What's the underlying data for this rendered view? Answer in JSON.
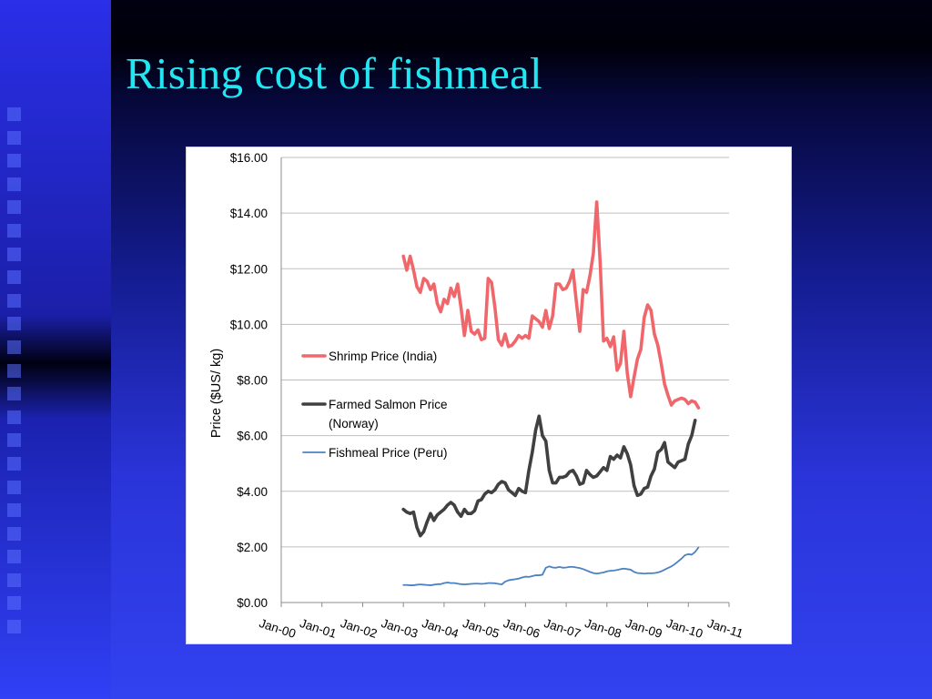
{
  "slide": {
    "title": "Rising cost of fishmeal"
  },
  "colors": {
    "shrimp": "#f0676b",
    "salmon": "#404040",
    "fishmeal": "#4b82c3",
    "title": "#22e6f2"
  },
  "chart_data": {
    "type": "line",
    "title": "",
    "xlabel": "",
    "ylabel": "Price ($US/ kg)",
    "x_ticks": [
      "Jan-00",
      "Jan-01",
      "Jan-02",
      "Jan-03",
      "Jan-04",
      "Jan-05",
      "Jan-06",
      "Jan-07",
      "Jan-08",
      "Jan-09",
      "Jan-10",
      "Jan-11"
    ],
    "y_ticks": [
      "$0.00",
      "$2.00",
      "$4.00",
      "$6.00",
      "$8.00",
      "$10.00",
      "$12.00",
      "$14.00",
      "$16.00"
    ],
    "xlim": [
      "Jan-00",
      "Jan-11"
    ],
    "ylim": [
      0,
      16
    ],
    "grid": "horizontal",
    "legend": "left",
    "series": [
      {
        "name": "Shrimp Price (India)",
        "points": [
          [
            "Jan-03",
            12.45
          ],
          [
            "Feb-03",
            11.95
          ],
          [
            "Mar-03",
            12.45
          ],
          [
            "Apr-03",
            11.95
          ],
          [
            "May-03",
            11.35
          ],
          [
            "Jun-03",
            11.15
          ],
          [
            "Jul-03",
            11.65
          ],
          [
            "Aug-03",
            11.55
          ],
          [
            "Sep-03",
            11.25
          ],
          [
            "Oct-03",
            11.45
          ],
          [
            "Nov-03",
            10.75
          ],
          [
            "Dec-03",
            10.45
          ],
          [
            "Jan-04",
            10.9
          ],
          [
            "Feb-04",
            10.75
          ],
          [
            "Mar-04",
            11.3
          ],
          [
            "Apr-04",
            11.0
          ],
          [
            "May-04",
            11.45
          ],
          [
            "Jun-04",
            10.6
          ],
          [
            "Jul-04",
            9.6
          ],
          [
            "Aug-04",
            10.5
          ],
          [
            "Sep-04",
            9.75
          ],
          [
            "Oct-04",
            9.65
          ],
          [
            "Nov-04",
            9.8
          ],
          [
            "Dec-04",
            9.45
          ],
          [
            "Jan-05",
            9.5
          ],
          [
            "Feb-05",
            11.65
          ],
          [
            "Mar-05",
            11.5
          ],
          [
            "Apr-05",
            10.6
          ],
          [
            "May-05",
            9.45
          ],
          [
            "Jun-05",
            9.25
          ],
          [
            "Jul-05",
            9.65
          ],
          [
            "Aug-05",
            9.2
          ],
          [
            "Sep-05",
            9.25
          ],
          [
            "Oct-05",
            9.4
          ],
          [
            "Nov-05",
            9.6
          ],
          [
            "Dec-05",
            9.5
          ],
          [
            "Jan-06",
            9.6
          ],
          [
            "Feb-06",
            9.5
          ],
          [
            "Mar-06",
            10.3
          ],
          [
            "Apr-06",
            10.2
          ],
          [
            "May-06",
            10.1
          ],
          [
            "Jun-06",
            9.9
          ],
          [
            "Jul-06",
            10.5
          ],
          [
            "Aug-06",
            9.85
          ],
          [
            "Sep-06",
            10.3
          ],
          [
            "Oct-06",
            11.45
          ],
          [
            "Nov-06",
            11.45
          ],
          [
            "Dec-06",
            11.25
          ],
          [
            "Jan-07",
            11.3
          ],
          [
            "Feb-07",
            11.55
          ],
          [
            "Mar-07",
            11.95
          ],
          [
            "Apr-07",
            10.8
          ],
          [
            "May-07",
            9.75
          ],
          [
            "Jun-07",
            11.25
          ],
          [
            "Jul-07",
            11.15
          ],
          [
            "Aug-07",
            11.75
          ],
          [
            "Sep-07",
            12.55
          ],
          [
            "Oct-07",
            14.4
          ],
          [
            "Nov-07",
            12.25
          ],
          [
            "Dec-07",
            9.4
          ],
          [
            "Jan-08",
            9.5
          ],
          [
            "Feb-08",
            9.2
          ],
          [
            "Mar-08",
            9.55
          ],
          [
            "Apr-08",
            8.35
          ],
          [
            "May-08",
            8.6
          ],
          [
            "Jun-08",
            9.75
          ],
          [
            "Jul-08",
            8.25
          ],
          [
            "Aug-08",
            7.4
          ],
          [
            "Sep-08",
            8.1
          ],
          [
            "Oct-08",
            8.75
          ],
          [
            "Nov-08",
            9.1
          ],
          [
            "Dec-08",
            10.25
          ],
          [
            "Jan-09",
            10.7
          ],
          [
            "Feb-09",
            10.5
          ],
          [
            "Mar-09",
            9.65
          ],
          [
            "Apr-09",
            9.25
          ],
          [
            "May-09",
            8.6
          ],
          [
            "Jun-09",
            7.85
          ],
          [
            "Jul-09",
            7.45
          ],
          [
            "Aug-09",
            7.1
          ],
          [
            "Sep-09",
            7.25
          ],
          [
            "Oct-09",
            7.3
          ],
          [
            "Nov-09",
            7.35
          ],
          [
            "Dec-09",
            7.3
          ],
          [
            "Jan-10",
            7.15
          ],
          [
            "Feb-10",
            7.25
          ],
          [
            "Mar-10",
            7.2
          ],
          [
            "Apr-10",
            7.0
          ]
        ]
      },
      {
        "name": "Farmed Salmon Price (Norway)",
        "points": [
          [
            "Jan-03",
            3.35
          ],
          [
            "Feb-03",
            3.25
          ],
          [
            "Mar-03",
            3.2
          ],
          [
            "Apr-03",
            3.25
          ],
          [
            "May-03",
            2.7
          ],
          [
            "Jun-03",
            2.4
          ],
          [
            "Jul-03",
            2.55
          ],
          [
            "Aug-03",
            2.9
          ],
          [
            "Sep-03",
            3.2
          ],
          [
            "Oct-03",
            2.95
          ],
          [
            "Nov-03",
            3.15
          ],
          [
            "Dec-03",
            3.25
          ],
          [
            "Jan-04",
            3.35
          ],
          [
            "Feb-04",
            3.5
          ],
          [
            "Mar-04",
            3.6
          ],
          [
            "Apr-04",
            3.5
          ],
          [
            "May-04",
            3.25
          ],
          [
            "Jun-04",
            3.1
          ],
          [
            "Jul-04",
            3.35
          ],
          [
            "Aug-04",
            3.2
          ],
          [
            "Sep-04",
            3.2
          ],
          [
            "Oct-04",
            3.3
          ],
          [
            "Nov-04",
            3.65
          ],
          [
            "Dec-04",
            3.7
          ],
          [
            "Jan-05",
            3.9
          ],
          [
            "Feb-05",
            4.0
          ],
          [
            "Mar-05",
            3.95
          ],
          [
            "Apr-05",
            4.05
          ],
          [
            "May-05",
            4.25
          ],
          [
            "Jun-05",
            4.35
          ],
          [
            "Jul-05",
            4.3
          ],
          [
            "Aug-05",
            4.05
          ],
          [
            "Sep-05",
            3.95
          ],
          [
            "Oct-05",
            3.85
          ],
          [
            "Nov-05",
            4.1
          ],
          [
            "Dec-05",
            4.0
          ],
          [
            "Jan-06",
            3.95
          ],
          [
            "Feb-06",
            4.75
          ],
          [
            "Mar-06",
            5.4
          ],
          [
            "Apr-06",
            6.2
          ],
          [
            "May-06",
            6.7
          ],
          [
            "Jun-06",
            6.0
          ],
          [
            "Jul-06",
            5.8
          ],
          [
            "Aug-06",
            4.75
          ],
          [
            "Sep-06",
            4.3
          ],
          [
            "Oct-06",
            4.3
          ],
          [
            "Nov-06",
            4.5
          ],
          [
            "Dec-06",
            4.5
          ],
          [
            "Jan-07",
            4.55
          ],
          [
            "Feb-07",
            4.7
          ],
          [
            "Mar-07",
            4.75
          ],
          [
            "Apr-07",
            4.55
          ],
          [
            "May-07",
            4.25
          ],
          [
            "Jun-07",
            4.3
          ],
          [
            "Jul-07",
            4.75
          ],
          [
            "Aug-07",
            4.6
          ],
          [
            "Sep-07",
            4.5
          ],
          [
            "Oct-07",
            4.55
          ],
          [
            "Nov-07",
            4.7
          ],
          [
            "Dec-07",
            4.85
          ],
          [
            "Jan-08",
            4.75
          ],
          [
            "Feb-08",
            5.25
          ],
          [
            "Mar-08",
            5.15
          ],
          [
            "Apr-08",
            5.3
          ],
          [
            "May-08",
            5.2
          ],
          [
            "Jun-08",
            5.6
          ],
          [
            "Jul-08",
            5.35
          ],
          [
            "Aug-08",
            4.95
          ],
          [
            "Sep-08",
            4.2
          ],
          [
            "Oct-08",
            3.85
          ],
          [
            "Nov-08",
            3.9
          ],
          [
            "Dec-08",
            4.1
          ],
          [
            "Jan-09",
            4.15
          ],
          [
            "Feb-09",
            4.55
          ],
          [
            "Mar-09",
            4.8
          ],
          [
            "Apr-09",
            5.4
          ],
          [
            "May-09",
            5.5
          ],
          [
            "Jun-09",
            5.75
          ],
          [
            "Jul-09",
            5.05
          ],
          [
            "Aug-09",
            4.95
          ],
          [
            "Sep-09",
            4.85
          ],
          [
            "Oct-09",
            5.05
          ],
          [
            "Nov-09",
            5.1
          ],
          [
            "Dec-09",
            5.15
          ],
          [
            "Jan-10",
            5.7
          ],
          [
            "Feb-10",
            6.0
          ],
          [
            "Mar-10",
            6.55
          ]
        ]
      },
      {
        "name": "Fishmeal Price (Peru)",
        "points": [
          [
            "Jan-03",
            0.63
          ],
          [
            "Feb-03",
            0.63
          ],
          [
            "Mar-03",
            0.62
          ],
          [
            "Apr-03",
            0.62
          ],
          [
            "May-03",
            0.64
          ],
          [
            "Jun-03",
            0.65
          ],
          [
            "Jul-03",
            0.64
          ],
          [
            "Aug-03",
            0.63
          ],
          [
            "Sep-03",
            0.62
          ],
          [
            "Oct-03",
            0.64
          ],
          [
            "Nov-03",
            0.66
          ],
          [
            "Dec-03",
            0.66
          ],
          [
            "Jan-04",
            0.7
          ],
          [
            "Feb-04",
            0.72
          ],
          [
            "Mar-04",
            0.7
          ],
          [
            "Apr-04",
            0.7
          ],
          [
            "May-04",
            0.68
          ],
          [
            "Jun-04",
            0.66
          ],
          [
            "Jul-04",
            0.65
          ],
          [
            "Aug-04",
            0.66
          ],
          [
            "Sep-04",
            0.67
          ],
          [
            "Oct-04",
            0.68
          ],
          [
            "Nov-04",
            0.68
          ],
          [
            "Dec-04",
            0.67
          ],
          [
            "Jan-05",
            0.68
          ],
          [
            "Feb-05",
            0.7
          ],
          [
            "Mar-05",
            0.7
          ],
          [
            "Apr-05",
            0.69
          ],
          [
            "May-05",
            0.67
          ],
          [
            "Jun-05",
            0.65
          ],
          [
            "Jul-05",
            0.75
          ],
          [
            "Aug-05",
            0.8
          ],
          [
            "Sep-05",
            0.82
          ],
          [
            "Oct-05",
            0.84
          ],
          [
            "Nov-05",
            0.86
          ],
          [
            "Dec-05",
            0.9
          ],
          [
            "Jan-06",
            0.93
          ],
          [
            "Feb-06",
            0.92
          ],
          [
            "Mar-06",
            0.95
          ],
          [
            "Apr-06",
            0.98
          ],
          [
            "May-06",
            0.98
          ],
          [
            "Jun-06",
            1.0
          ],
          [
            "Jul-06",
            1.25
          ],
          [
            "Aug-06",
            1.3
          ],
          [
            "Sep-06",
            1.26
          ],
          [
            "Oct-06",
            1.25
          ],
          [
            "Nov-06",
            1.28
          ],
          [
            "Dec-06",
            1.25
          ],
          [
            "Jan-07",
            1.26
          ],
          [
            "Feb-07",
            1.28
          ],
          [
            "Mar-07",
            1.28
          ],
          [
            "Apr-07",
            1.26
          ],
          [
            "May-07",
            1.24
          ],
          [
            "Jun-07",
            1.2
          ],
          [
            "Jul-07",
            1.15
          ],
          [
            "Aug-07",
            1.1
          ],
          [
            "Sep-07",
            1.06
          ],
          [
            "Oct-07",
            1.04
          ],
          [
            "Nov-07",
            1.06
          ],
          [
            "Dec-07",
            1.08
          ],
          [
            "Jan-08",
            1.12
          ],
          [
            "Feb-08",
            1.14
          ],
          [
            "Mar-08",
            1.15
          ],
          [
            "Apr-08",
            1.17
          ],
          [
            "May-08",
            1.2
          ],
          [
            "Jun-08",
            1.22
          ],
          [
            "Jul-08",
            1.2
          ],
          [
            "Aug-08",
            1.18
          ],
          [
            "Sep-08",
            1.1
          ],
          [
            "Oct-08",
            1.06
          ],
          [
            "Nov-08",
            1.05
          ],
          [
            "Dec-08",
            1.04
          ],
          [
            "Jan-09",
            1.05
          ],
          [
            "Feb-09",
            1.05
          ],
          [
            "Mar-09",
            1.06
          ],
          [
            "Apr-09",
            1.08
          ],
          [
            "May-09",
            1.12
          ],
          [
            "Jun-09",
            1.18
          ],
          [
            "Jul-09",
            1.24
          ],
          [
            "Aug-09",
            1.3
          ],
          [
            "Sep-09",
            1.38
          ],
          [
            "Oct-09",
            1.48
          ],
          [
            "Nov-09",
            1.58
          ],
          [
            "Dec-09",
            1.7
          ],
          [
            "Jan-10",
            1.74
          ],
          [
            "Feb-10",
            1.72
          ],
          [
            "Mar-10",
            1.82
          ],
          [
            "Apr-10",
            1.98
          ]
        ]
      }
    ]
  }
}
